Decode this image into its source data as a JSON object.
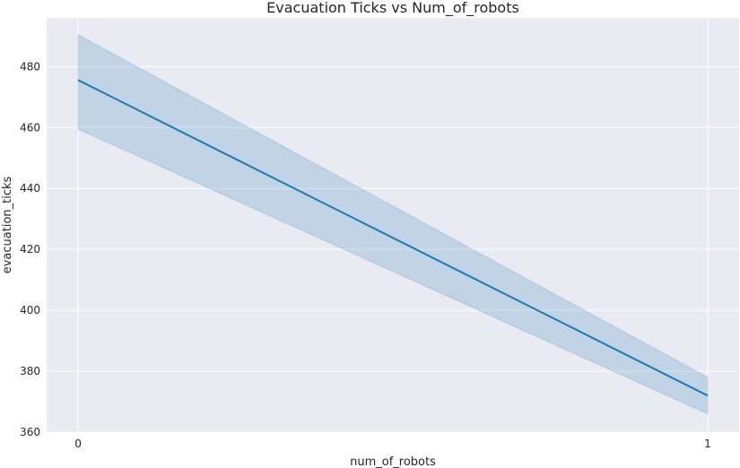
{
  "chart_data": {
    "type": "line",
    "title": "Evacuation Ticks vs Num_of_robots",
    "xlabel": "num_of_robots",
    "ylabel": "evacuation_ticks",
    "x": [
      0,
      1
    ],
    "x_ticks": [
      "0",
      "1"
    ],
    "xlim": [
      -0.05,
      1.05
    ],
    "ylim": [
      360,
      496
    ],
    "y_ticks": [
      "360",
      "380",
      "400",
      "420",
      "440",
      "460",
      "480"
    ],
    "grid": true,
    "series": [
      {
        "values": [
          475.6,
          372.0
        ],
        "ci_lower": [
          459.5,
          366.0
        ],
        "ci_upper": [
          490.5,
          378.0
        ],
        "color": "#1f77b4"
      }
    ],
    "background_color": "#eaeaf2",
    "grid_color": "#ffffff"
  }
}
